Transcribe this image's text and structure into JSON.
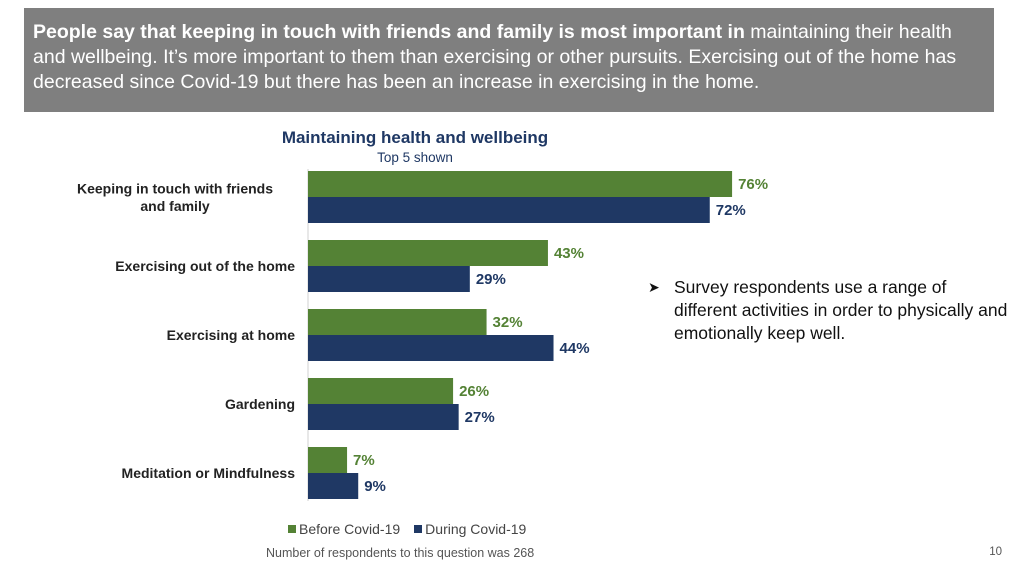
{
  "header": {
    "bold_text": "People say that keeping in touch with friends and family is most important in",
    "regular_text": " maintaining their health and wellbeing.  It’s more important to them than exercising or other pursuits. Exercising out of the home has decreased since Covid-19 but there has been an increase in exercising in the home."
  },
  "chart_data": {
    "type": "bar",
    "orientation": "horizontal",
    "title": "Maintaining health and wellbeing",
    "subtitle": "Top 5 shown",
    "categories": [
      "Keeping in touch with friends and family",
      "Exercising out of the home",
      "Exercising at home",
      "Gardening",
      "Meditation or Mindfulness"
    ],
    "series": [
      {
        "name": "Before Covid-19",
        "values": [
          76,
          43,
          32,
          26,
          7
        ],
        "color": "#548235"
      },
      {
        "name": "During Covid-19",
        "values": [
          72,
          29,
          44,
          27,
          9
        ],
        "color": "#1f3864"
      }
    ],
    "value_suffix": "%",
    "xlim": [
      0,
      100
    ],
    "grid": false,
    "legend_position": "bottom"
  },
  "callout": {
    "text": "Survey respondents use a range of different activities in order to physically and emotionally keep well."
  },
  "footnote": "Number of respondents to this question was 268",
  "page_number": "10"
}
